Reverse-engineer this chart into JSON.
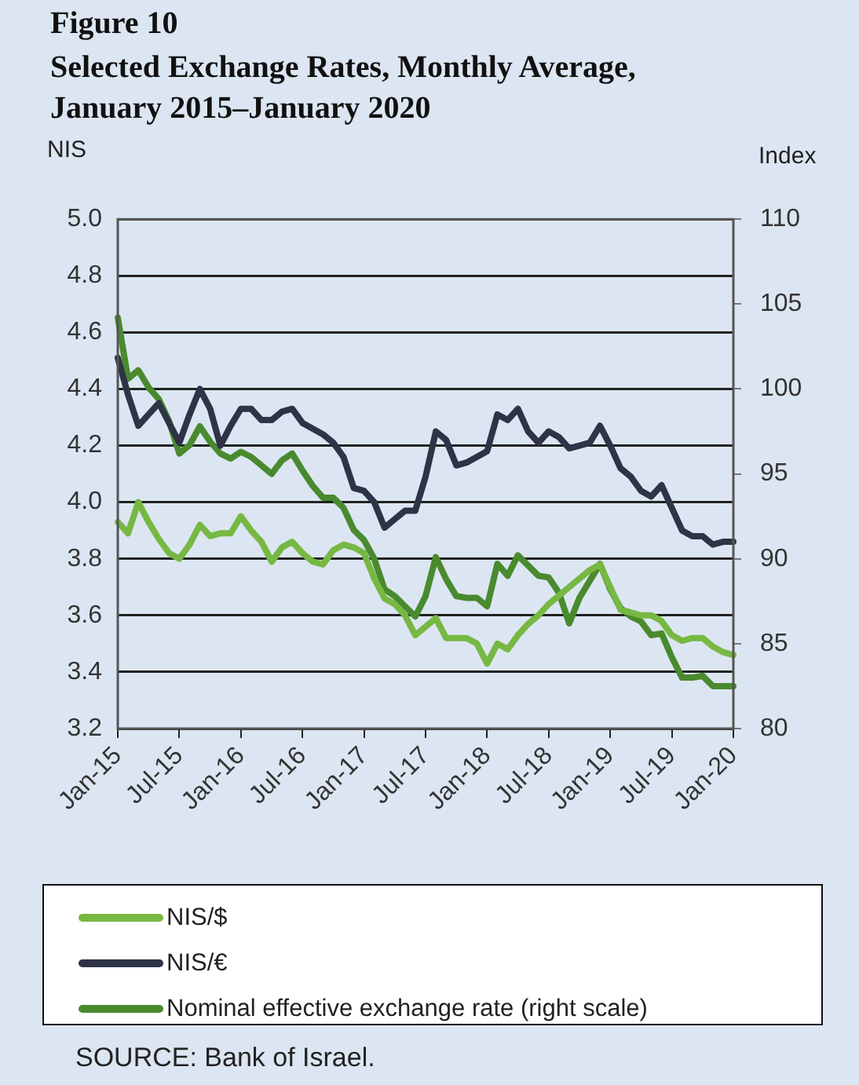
{
  "chart_data": {
    "type": "line",
    "title": "Figure 10",
    "subtitle": "Selected Exchange Rates, Monthly Average,\nJanuary 2015–January 2020",
    "ylabel": "NIS",
    "y2label": "Index",
    "categories": [
      "Jan-15",
      null,
      null,
      null,
      null,
      null,
      "Jul-15",
      null,
      null,
      null,
      null,
      null,
      "Jan-16",
      null,
      null,
      null,
      null,
      null,
      "Jul-16",
      null,
      null,
      null,
      null,
      null,
      "Jan-17",
      null,
      null,
      null,
      null,
      null,
      "Jul-17",
      null,
      null,
      null,
      null,
      null,
      "Jan-18",
      null,
      null,
      null,
      null,
      null,
      "Jul-18",
      null,
      null,
      null,
      null,
      null,
      "Jan-19",
      null,
      null,
      null,
      null,
      null,
      "Jul-19",
      null,
      null,
      null,
      null,
      null,
      "Jan-20"
    ],
    "series": [
      {
        "name": "NIS/$",
        "color": "#77b843",
        "values": [
          3.93,
          3.89,
          4.0,
          3.93,
          3.87,
          3.82,
          3.8,
          3.85,
          3.92,
          3.88,
          3.89,
          3.89,
          3.95,
          3.9,
          3.86,
          3.79,
          3.84,
          3.86,
          3.82,
          3.79,
          3.78,
          3.83,
          3.85,
          3.84,
          3.82,
          3.73,
          3.66,
          3.64,
          3.6,
          3.53,
          3.56,
          3.59,
          3.52,
          3.52,
          3.52,
          3.5,
          3.43,
          3.5,
          3.48,
          3.53,
          3.57,
          3.6,
          3.64,
          3.67,
          3.7,
          3.73,
          3.76,
          3.78,
          3.7,
          3.62,
          3.61,
          3.6,
          3.6,
          3.58,
          3.53,
          3.51,
          3.52,
          3.52,
          3.49,
          3.47,
          3.46
        ]
      },
      {
        "name": "NIS/€",
        "color": "#2e3347",
        "values": [
          4.51,
          4.38,
          4.27,
          4.31,
          4.35,
          4.28,
          4.21,
          4.31,
          4.4,
          4.33,
          4.2,
          4.27,
          4.33,
          4.33,
          4.29,
          4.29,
          4.32,
          4.33,
          4.28,
          4.26,
          4.24,
          4.21,
          4.16,
          4.05,
          4.04,
          4.0,
          3.91,
          3.94,
          3.97,
          3.97,
          4.09,
          4.25,
          4.22,
          4.13,
          4.14,
          4.16,
          4.18,
          4.31,
          4.29,
          4.33,
          4.25,
          4.21,
          4.25,
          4.23,
          4.19,
          4.2,
          4.21,
          4.27,
          4.2,
          4.12,
          4.09,
          4.04,
          4.02,
          4.06,
          3.98,
          3.9,
          3.88,
          3.88,
          3.85,
          3.86,
          3.86
        ]
      },
      {
        "name": "Nominal effective exchange rate (right scale)",
        "color": "#4a8a2e",
        "axis": "y2",
        "values": [
          104.2,
          100.6,
          101.1,
          100.1,
          99.4,
          98.1,
          96.2,
          96.7,
          97.8,
          96.9,
          96.2,
          95.9,
          96.3,
          96.0,
          95.5,
          95.0,
          95.8,
          96.2,
          95.2,
          94.3,
          93.6,
          93.6,
          93.0,
          91.7,
          91.1,
          90.0,
          88.2,
          87.8,
          87.2,
          86.6,
          87.8,
          90.1,
          88.8,
          87.8,
          87.7,
          87.7,
          87.2,
          89.7,
          89.0,
          90.2,
          89.6,
          89.0,
          88.9,
          88.0,
          86.2,
          87.7,
          88.7,
          89.7,
          88.2,
          87.1,
          86.6,
          86.3,
          85.5,
          85.6,
          84.2,
          83.0,
          83.0,
          83.1,
          82.5,
          82.5,
          82.5
        ]
      }
    ],
    "ylim": [
      3.2,
      5.0
    ],
    "yticks": [
      3.2,
      3.4,
      3.6,
      3.8,
      {
        "value": 4,
        "label": "4.0"
      },
      4.2,
      4.4,
      4.6,
      4.8,
      {
        "value": 5,
        "label": "5.0"
      }
    ],
    "y2lim": [
      80,
      110
    ],
    "y2ticks": [
      80,
      85,
      90,
      95,
      100,
      105,
      110
    ],
    "grid": "y",
    "legend": "bottom",
    "marker": "none",
    "line_style": "solid",
    "annotations": [
      "SOURCE: Bank of Israel."
    ]
  }
}
